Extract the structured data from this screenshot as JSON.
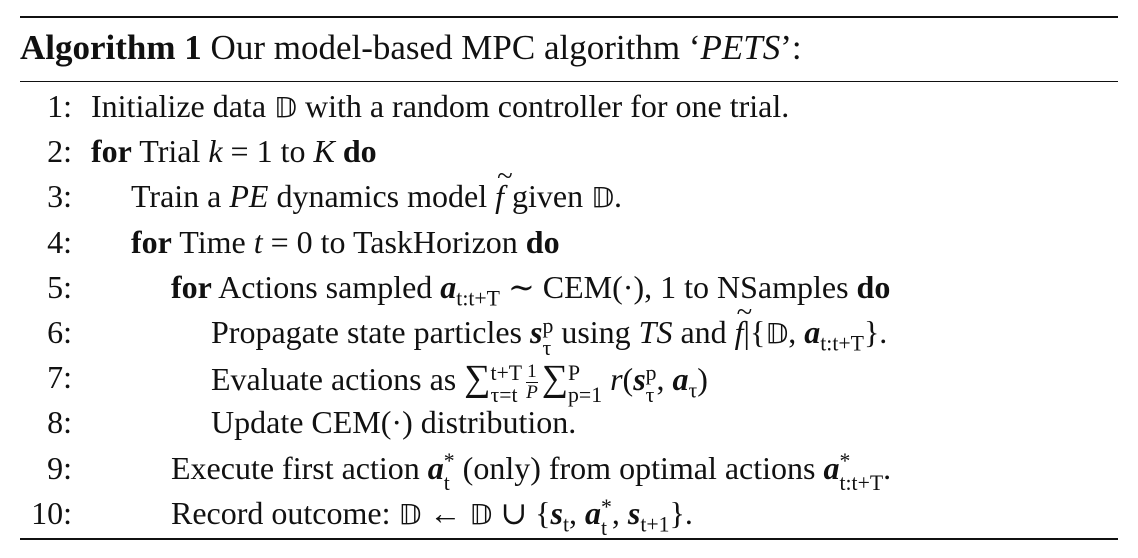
{
  "algorithm": {
    "label": "Algorithm 1",
    "title_pre": "Our model-based MPC algorithm ‘",
    "title_name": "PETS",
    "title_post": "’:"
  },
  "lines": [
    {
      "num": "1:",
      "indent": 0,
      "parts": [
        {
          "t": "text",
          "v": "Initialize data "
        },
        {
          "t": "bb",
          "v": "𝔻"
        },
        {
          "t": "text",
          "v": " with a random controller for one trial."
        }
      ]
    },
    {
      "num": "2:",
      "indent": 0,
      "parts": [
        {
          "t": "kw",
          "v": "for"
        },
        {
          "t": "text",
          "v": " Trial "
        },
        {
          "t": "it",
          "v": "k"
        },
        {
          "t": "text",
          "v": " = 1 to "
        },
        {
          "t": "it",
          "v": "K"
        },
        {
          "t": "text",
          "v": " "
        },
        {
          "t": "kw",
          "v": "do"
        }
      ]
    },
    {
      "num": "3:",
      "indent": 1,
      "parts": [
        {
          "t": "text",
          "v": "Train a "
        },
        {
          "t": "it",
          "v": "PE"
        },
        {
          "t": "text",
          "v": " dynamics model "
        },
        {
          "t": "tf",
          "v": "f"
        },
        {
          "t": "text",
          "v": " given "
        },
        {
          "t": "bb",
          "v": "𝔻"
        },
        {
          "t": "text",
          "v": "."
        }
      ]
    },
    {
      "num": "4:",
      "indent": 1,
      "parts": [
        {
          "t": "kw",
          "v": "for"
        },
        {
          "t": "text",
          "v": " Time "
        },
        {
          "t": "it",
          "v": "t"
        },
        {
          "t": "text",
          "v": " = 0 to TaskHorizon "
        },
        {
          "t": "kw",
          "v": "do"
        }
      ]
    },
    {
      "num": "5:",
      "indent": 2,
      "parts": [
        {
          "t": "kw",
          "v": "for"
        },
        {
          "t": "text",
          "v": " Actions sampled "
        },
        {
          "t": "bv",
          "v": "a"
        },
        {
          "t": "sub",
          "v": "t:t+T"
        },
        {
          "t": "text",
          "v": " ∼ CEM(·), 1 to NSamples "
        },
        {
          "t": "kw",
          "v": "do"
        }
      ]
    },
    {
      "num": "6:",
      "indent": 3,
      "parts": [
        {
          "t": "text",
          "v": "Propagate state particles "
        },
        {
          "t": "bv",
          "v": "s"
        },
        {
          "t": "subsup",
          "sub": "τ",
          "sup": "p"
        },
        {
          "t": "text",
          "v": " using "
        },
        {
          "t": "it",
          "v": "TS"
        },
        {
          "t": "text",
          "v": " and "
        },
        {
          "t": "tf",
          "v": "f"
        },
        {
          "t": "text",
          "v": "|{"
        },
        {
          "t": "bb",
          "v": "𝔻"
        },
        {
          "t": "text",
          "v": ", "
        },
        {
          "t": "bv",
          "v": "a"
        },
        {
          "t": "sub",
          "v": "t:t+T"
        },
        {
          "t": "text",
          "v": "}."
        }
      ]
    },
    {
      "num": "7:",
      "indent": 3,
      "parts": [
        {
          "t": "text",
          "v": "Evaluate actions as "
        },
        {
          "t": "sigma",
          "v": "∑"
        },
        {
          "t": "subsup",
          "sub": "τ=t",
          "sup": "t+T"
        },
        {
          "t": "frac",
          "num": "1",
          "den": "P"
        },
        {
          "t": "sigma",
          "v": "∑"
        },
        {
          "t": "subsup",
          "sub": "p=1",
          "sup": "P"
        },
        {
          "t": "text",
          "v": " "
        },
        {
          "t": "it",
          "v": "r"
        },
        {
          "t": "text",
          "v": "("
        },
        {
          "t": "bv",
          "v": "s"
        },
        {
          "t": "subsup",
          "sub": "τ",
          "sup": "p"
        },
        {
          "t": "text",
          "v": ", "
        },
        {
          "t": "bv",
          "v": "a"
        },
        {
          "t": "sub",
          "v": "τ"
        },
        {
          "t": "text",
          "v": ")"
        }
      ]
    },
    {
      "num": "8:",
      "indent": 3,
      "parts": [
        {
          "t": "text",
          "v": "Update CEM(·) distribution."
        }
      ]
    },
    {
      "num": "9:",
      "indent": 2,
      "parts": [
        {
          "t": "text",
          "v": "Execute first action "
        },
        {
          "t": "bv",
          "v": "a"
        },
        {
          "t": "subsup",
          "sub": "t",
          "sup": "*"
        },
        {
          "t": "text",
          "v": " (only) from optimal actions "
        },
        {
          "t": "bv",
          "v": "a"
        },
        {
          "t": "subsup",
          "sub": "t:t+T",
          "sup": "*"
        },
        {
          "t": "text",
          "v": "."
        }
      ]
    },
    {
      "num": "10:",
      "indent": 2,
      "parts": [
        {
          "t": "text",
          "v": "Record outcome: "
        },
        {
          "t": "bb",
          "v": "𝔻"
        },
        {
          "t": "text",
          "v": " ← "
        },
        {
          "t": "bb",
          "v": "𝔻"
        },
        {
          "t": "text",
          "v": " ∪ {"
        },
        {
          "t": "bv",
          "v": "s"
        },
        {
          "t": "sub",
          "v": "t"
        },
        {
          "t": "text",
          "v": ", "
        },
        {
          "t": "bv",
          "v": "a"
        },
        {
          "t": "subsup",
          "sub": "t",
          "sup": "*"
        },
        {
          "t": "text",
          "v": ", "
        },
        {
          "t": "bv",
          "v": "s"
        },
        {
          "t": "sub",
          "v": "t+1"
        },
        {
          "t": "text",
          "v": "}."
        }
      ]
    }
  ]
}
